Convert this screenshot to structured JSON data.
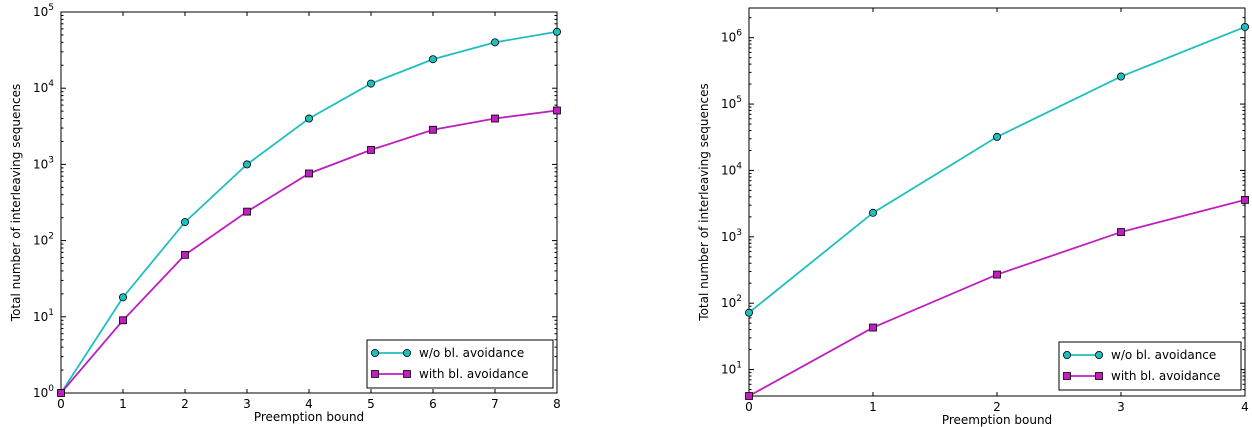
{
  "chart_data": [
    {
      "type": "line",
      "xlabel": "Preemption bound",
      "ylabel": "Total number of interleaving sequences",
      "xlim": [
        0,
        8
      ],
      "ylim": [
        1,
        100000
      ],
      "yscale": "log",
      "x": [
        0,
        1,
        2,
        3,
        4,
        5,
        6,
        7,
        8
      ],
      "x_ticks": [
        "0",
        "1",
        "2",
        "3",
        "4",
        "5",
        "6",
        "7",
        "8"
      ],
      "y_ticks": [
        {
          "base": "10",
          "exp": "0",
          "value": 1
        },
        {
          "base": "10",
          "exp": "1",
          "value": 10
        },
        {
          "base": "10",
          "exp": "2",
          "value": 100
        },
        {
          "base": "10",
          "exp": "3",
          "value": 1000
        },
        {
          "base": "10",
          "exp": "4",
          "value": 10000
        },
        {
          "base": "10",
          "exp": "5",
          "value": 100000
        }
      ],
      "grid": false,
      "legend_position": "bottom-right",
      "series": [
        {
          "name": "w/o bl. avoidance",
          "color": "#1fbfbf",
          "marker": "circle",
          "values": [
            1,
            18,
            175,
            1000,
            4000,
            11500,
            24000,
            40000,
            55000
          ]
        },
        {
          "name": "with bl. avoidance",
          "color": "#bf1fbf",
          "marker": "square",
          "values": [
            1,
            9,
            65,
            240,
            760,
            1550,
            2850,
            4000,
            5100
          ]
        }
      ]
    },
    {
      "type": "line",
      "xlabel": "Preemption bound",
      "ylabel": "Total number of interleaving sequences",
      "xlim": [
        0,
        4
      ],
      "ylim": [
        4,
        2800000
      ],
      "yscale": "log",
      "x": [
        0,
        1,
        2,
        3,
        4
      ],
      "x_ticks": [
        "0",
        "1",
        "2",
        "3",
        "4"
      ],
      "y_ticks": [
        {
          "base": "10",
          "exp": "1",
          "value": 10
        },
        {
          "base": "10",
          "exp": "2",
          "value": 100
        },
        {
          "base": "10",
          "exp": "3",
          "value": 1000
        },
        {
          "base": "10",
          "exp": "4",
          "value": 10000
        },
        {
          "base": "10",
          "exp": "5",
          "value": 100000
        },
        {
          "base": "10",
          "exp": "6",
          "value": 1000000
        }
      ],
      "grid": false,
      "legend_position": "bottom-right",
      "series": [
        {
          "name": "w/o bl. avoidance",
          "color": "#1fbfbf",
          "marker": "circle",
          "values": [
            72,
            2300,
            32000,
            260000,
            1450000
          ]
        },
        {
          "name": "with bl. avoidance",
          "color": "#bf1fbf",
          "marker": "square",
          "values": [
            4,
            43,
            270,
            1180,
            3600
          ]
        }
      ]
    }
  ]
}
